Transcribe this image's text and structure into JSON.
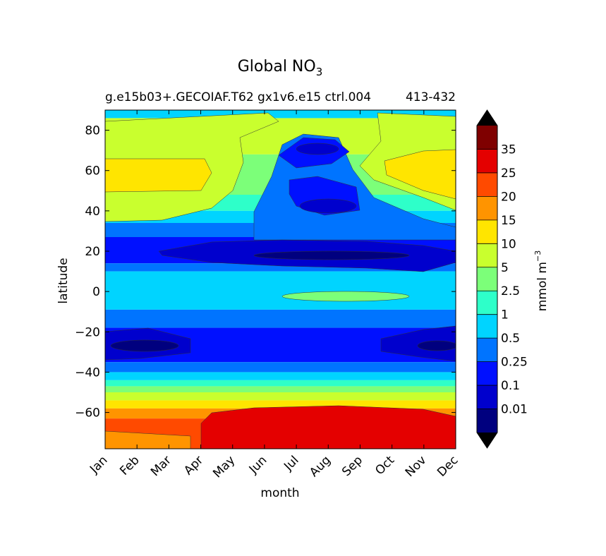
{
  "chart_data": {
    "type": "contour",
    "title": "Global NO",
    "title_subscript": "3",
    "subtitle": "g.e15b03+.GECOIAF.T62 gx1v6.e15 ctrl.004",
    "subtitle_years": "413-432",
    "xlabel": "month",
    "ylabel": "latitude",
    "x_ticks": [
      "Jan",
      "Feb",
      "Mar",
      "Apr",
      "May",
      "Jun",
      "Jul",
      "Aug",
      "Sep",
      "Oct",
      "Nov",
      "Dec"
    ],
    "y_ticks": [
      "80",
      "60",
      "40",
      "20",
      "0",
      "−20",
      "−40",
      "−60"
    ],
    "y_tick_values": [
      80,
      60,
      40,
      20,
      0,
      -20,
      -40,
      -60
    ],
    "ylim": [
      -78,
      90
    ],
    "colorbar": {
      "label": "mmol m",
      "label_exponent": "−3",
      "levels": [
        "0.01",
        "0.1",
        "0.25",
        "0.5",
        "1",
        "2.5",
        "5",
        "10",
        "15",
        "20",
        "25",
        "35"
      ],
      "colors": [
        "#00007f",
        "#0000cd",
        "#0010ff",
        "#0074ff",
        "#00d4ff",
        "#2effc9",
        "#7cff79",
        "#c9ff2e",
        "#ffe500",
        "#ff9400",
        "#ff4a00",
        "#e40000",
        "#7f0000"
      ],
      "extend_low": "#000000",
      "extend_high": "#000000"
    },
    "bands": [
      {
        "min_mmol": 10,
        "max_mmol": 15,
        "where": "North Atlantic 55-65N, Jan-Apr and Nov-Dec"
      },
      {
        "min_mmol": 0.01,
        "max_mmol": 0.1,
        "where": "Subtropical North 16-20N, Jun-Oct"
      },
      {
        "min_mmol": 0.1,
        "max_mmol": 0.25,
        "where": "Subtropical North 13-25N, Mar-Dec; South 25-35S, Jan-Apr and Nov-Dec"
      },
      {
        "min_mmol": 2.5,
        "max_mmol": 5,
        "where": "Equator, Aug-Sep"
      },
      {
        "min_mmol": 25,
        "max_mmol": 35,
        "where": "Southern Ocean 63-78S, Apr-Dec"
      },
      {
        "min_mmol": 20,
        "max_mmol": 25,
        "where": "Southern Ocean 58-78S"
      }
    ]
  }
}
